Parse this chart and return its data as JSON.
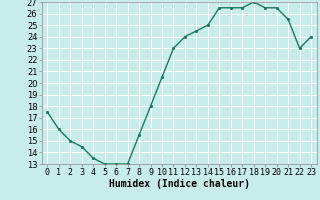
{
  "x": [
    0,
    1,
    2,
    3,
    4,
    5,
    6,
    7,
    8,
    9,
    10,
    11,
    12,
    13,
    14,
    15,
    16,
    17,
    18,
    19,
    20,
    21,
    22,
    23
  ],
  "y": [
    17.5,
    16.0,
    15.0,
    14.5,
    13.5,
    13.0,
    13.0,
    13.0,
    15.5,
    18.0,
    20.5,
    23.0,
    24.0,
    24.5,
    25.0,
    26.5,
    26.5,
    26.5,
    27.0,
    26.5,
    26.5,
    25.5,
    23.0,
    24.0
  ],
  "line_color": "#1a7a5e",
  "marker_color": "#1a7a5e",
  "bg_color": "#c8ecea",
  "grid_color": "#ffffff",
  "xlabel": "Humidex (Indice chaleur)",
  "xlim": [
    -0.5,
    23.5
  ],
  "ylim": [
    13,
    27
  ],
  "yticks": [
    13,
    14,
    15,
    16,
    17,
    18,
    19,
    20,
    21,
    22,
    23,
    24,
    25,
    26,
    27
  ],
  "xtick_labels": [
    "0",
    "1",
    "2",
    "3",
    "4",
    "5",
    "6",
    "7",
    "8",
    "9",
    "10",
    "11",
    "12",
    "13",
    "14",
    "15",
    "16",
    "17",
    "18",
    "19",
    "20",
    "21",
    "22",
    "23"
  ],
  "xlabel_fontsize": 7,
  "tick_fontsize": 6,
  "marker_size": 2.5,
  "line_width": 1.0
}
